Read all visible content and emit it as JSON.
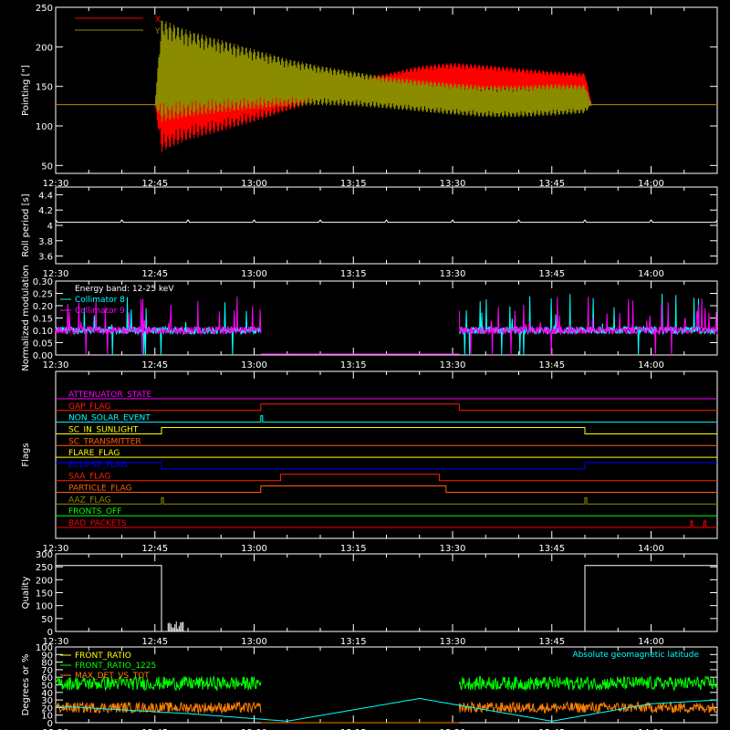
{
  "chart_data": [
    {
      "type": "line",
      "ylabel": "Pointing [\"]",
      "ylim": [
        40,
        250
      ],
      "yticks": [
        50,
        100,
        150,
        200,
        250
      ],
      "xlim": [
        "12:30",
        "14:10"
      ],
      "xticks": [
        "12:30",
        "12:45",
        "13:00",
        "13:15",
        "13:30",
        "13:45",
        "14:00"
      ],
      "legend_position": "top-left",
      "series": [
        {
          "name": "X",
          "color": "#ff0000",
          "x": [
            "12:30",
            "12:45",
            "12:46",
            "12:50",
            "12:55",
            "13:00",
            "13:05",
            "13:10",
            "13:15",
            "13:20",
            "13:25",
            "13:30",
            "13:35",
            "13:40",
            "13:45",
            "13:50",
            "13:51",
            "14:10"
          ],
          "center": [
            127,
            127,
            127,
            132,
            135,
            139,
            143,
            147,
            150,
            154,
            158,
            160,
            159,
            157,
            155,
            153,
            127,
            127
          ],
          "amplitude": [
            0,
            0,
            60,
            50,
            42,
            34,
            24,
            16,
            10,
            12,
            18,
            20,
            18,
            16,
            14,
            14,
            0,
            0
          ]
        },
        {
          "name": "Y",
          "color": "#8b8b00",
          "x": [
            "12:30",
            "12:45",
            "12:46",
            "12:50",
            "12:55",
            "13:00",
            "13:05",
            "13:10",
            "13:15",
            "13:20",
            "13:25",
            "13:30",
            "13:35",
            "13:40",
            "13:45",
            "13:50",
            "13:51",
            "14:10"
          ],
          "center": [
            127,
            127,
            170,
            166,
            163,
            159,
            155,
            151,
            147,
            142,
            138,
            134,
            131,
            131,
            133,
            134,
            127,
            127
          ],
          "amplitude": [
            0,
            0,
            65,
            55,
            46,
            38,
            30,
            25,
            22,
            20,
            20,
            20,
            20,
            20,
            20,
            18,
            0,
            0
          ]
        }
      ]
    },
    {
      "type": "line",
      "ylabel": "Roll period [s]",
      "ylim": [
        3.5,
        4.5
      ],
      "yticks": [
        3.6,
        3.8,
        4.0,
        4.2,
        4.4
      ],
      "xlim": [
        "12:30",
        "14:10"
      ],
      "xticks": [
        "12:30",
        "12:45",
        "13:00",
        "13:15",
        "13:30",
        "13:45",
        "14:00"
      ],
      "series": [
        {
          "name": "",
          "color": "#ffffff",
          "x": [
            "12:30",
            "14:10"
          ],
          "y": [
            4.04,
            4.04
          ]
        }
      ]
    },
    {
      "type": "line",
      "ylabel": "Normalized modulation",
      "ylim": [
        0,
        0.3
      ],
      "yticks": [
        "0.00",
        "0.05",
        "0.10",
        "0.15",
        "0.20",
        "0.25",
        "0.30"
      ],
      "xlim": [
        "12:30",
        "14:10"
      ],
      "xticks": [
        "12:30",
        "12:45",
        "13:00",
        "13:15",
        "13:30",
        "13:45",
        "14:00"
      ],
      "annotation": "Energy band: 12-25 keV",
      "series": [
        {
          "name": "Collimator 8",
          "color": "#00ffff"
        },
        {
          "name": "Collimator 9",
          "color": "#ff00ff"
        }
      ],
      "active_segments": [
        [
          "12:30",
          "13:01"
        ],
        [
          "13:31",
          "14:10"
        ]
      ],
      "typical_value": 0.1
    },
    {
      "type": "line",
      "ylabel": "Flags",
      "xlim": [
        "12:30",
        "14:10"
      ],
      "xticks": [
        "12:30",
        "12:45",
        "13:00",
        "13:15",
        "13:30",
        "13:45",
        "14:00"
      ],
      "series": [
        {
          "name": "ATTENUATOR_STATE",
          "color": "#ff00ff",
          "high": []
        },
        {
          "name": "GAP_FLAG",
          "color": "#ff2000",
          "high": [
            [
              "13:01",
              "13:31"
            ]
          ]
        },
        {
          "name": "NON_SOLAR_EVENT",
          "color": "#00ffff",
          "high": [
            [
              "13:01",
              "13:01"
            ]
          ]
        },
        {
          "name": "SC_IN_SUNLIGHT",
          "color": "#ffff00",
          "high": [
            [
              "12:46",
              "13:50"
            ]
          ]
        },
        {
          "name": "SC_TRANSMITTER",
          "color": "#ff6000",
          "high": []
        },
        {
          "name": "FLARE_FLAG",
          "color": "#ffff00",
          "high": []
        },
        {
          "name": "ECLIPSE_FLAG",
          "color": "#0000ff",
          "high": [
            [
              "12:30",
              "12:46"
            ],
            [
              "13:50",
              "14:10"
            ]
          ]
        },
        {
          "name": "SAA_FLAG",
          "color": "#ff2000",
          "high": [
            [
              "13:04",
              "13:28"
            ]
          ]
        },
        {
          "name": "PARTICLE_FLAG",
          "color": "#ff6000",
          "high": [
            [
              "13:01",
              "13:29"
            ]
          ]
        },
        {
          "name": "AAZ_FLAG",
          "color": "#8b8b00",
          "high": [
            [
              "12:46",
              "12:46"
            ],
            [
              "13:50",
              "13:50"
            ]
          ]
        },
        {
          "name": "FRONTS_OFF",
          "color": "#00ff00",
          "high": []
        },
        {
          "name": "BAD_PACKETS",
          "color": "#ff0000",
          "high": [
            [
              "14:06",
              "14:06"
            ],
            [
              "14:08",
              "14:08"
            ]
          ]
        }
      ]
    },
    {
      "type": "line",
      "ylabel": "Quality",
      "ylim": [
        0,
        300
      ],
      "yticks": [
        0,
        50,
        100,
        150,
        200,
        250,
        300
      ],
      "xlim": [
        "12:30",
        "14:10"
      ],
      "xticks": [
        "12:30",
        "12:45",
        "13:00",
        "13:15",
        "13:30",
        "13:45",
        "14:00"
      ],
      "series": [
        {
          "name": "",
          "color": "#ffffff",
          "x": [
            "12:30",
            "12:46",
            "12:46",
            "13:50",
            "13:50",
            "14:10"
          ],
          "y": [
            255,
            255,
            0,
            0,
            255,
            255
          ]
        }
      ]
    },
    {
      "type": "line",
      "ylabel": "Degrees or %",
      "ylim": [
        0,
        100
      ],
      "yticks": [
        0,
        10,
        20,
        30,
        40,
        50,
        60,
        70,
        80,
        90,
        100
      ],
      "xlim": [
        "12:30",
        "14:10"
      ],
      "xticks": [
        "12:30",
        "12:45",
        "13:00",
        "13:15",
        "13:30",
        "13:45",
        "14:00"
      ],
      "series": [
        {
          "name": "FRONT_RATIO",
          "color": "#ffff00"
        },
        {
          "name": "FRONT_RATIO_1225",
          "color": "#00ff00",
          "typical_value": 52
        },
        {
          "name": "MAX_DET_VS_TOT",
          "color": "#ff8000",
          "typical_value": 20
        },
        {
          "name": "Absolute geomagnetic latitude",
          "color": "#00ffff",
          "x": [
            "12:30",
            "12:50",
            "13:05",
            "13:25",
            "13:45",
            "14:00",
            "14:10"
          ],
          "y": [
            22,
            12,
            2,
            32,
            2,
            25,
            30
          ]
        }
      ],
      "active_segments": [
        [
          "12:30",
          "13:01"
        ],
        [
          "13:31",
          "14:10"
        ]
      ]
    }
  ]
}
